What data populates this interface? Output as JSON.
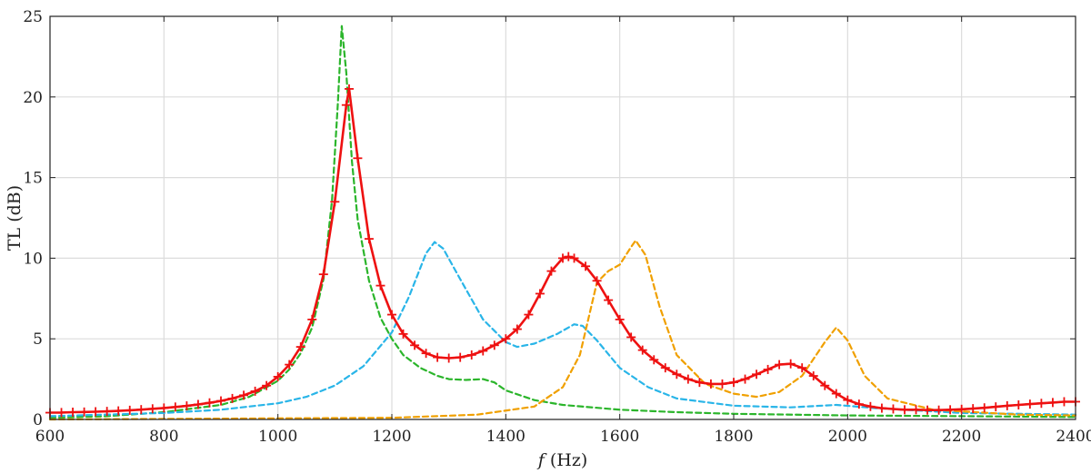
{
  "chart_data": {
    "type": "line",
    "xlabel_var": "f",
    "xlabel_unit": " (Hz)",
    "ylabel": "TL (dB)",
    "xlim": [
      600,
      2400
    ],
    "ylim": [
      0,
      25
    ],
    "grid": true,
    "x_ticks": [
      600,
      800,
      1000,
      1200,
      1400,
      1600,
      1800,
      2000,
      2200,
      2400
    ],
    "y_ticks": [
      0,
      5,
      10,
      15,
      20,
      25
    ],
    "series": [
      {
        "style": "dashed",
        "color": "#2bb52b",
        "points": [
          [
            600,
            0.1
          ],
          [
            700,
            0.2
          ],
          [
            800,
            0.45
          ],
          [
            900,
            0.9
          ],
          [
            950,
            1.4
          ],
          [
            1000,
            2.4
          ],
          [
            1020,
            3.1
          ],
          [
            1040,
            4.1
          ],
          [
            1060,
            5.7
          ],
          [
            1080,
            8.7
          ],
          [
            1095,
            13.6
          ],
          [
            1105,
            19.5
          ],
          [
            1112,
            24.4
          ],
          [
            1120,
            21.5
          ],
          [
            1130,
            16.0
          ],
          [
            1140,
            12.4
          ],
          [
            1160,
            8.6
          ],
          [
            1180,
            6.3
          ],
          [
            1200,
            5.0
          ],
          [
            1220,
            4.0
          ],
          [
            1250,
            3.2
          ],
          [
            1280,
            2.7
          ],
          [
            1300,
            2.5
          ],
          [
            1330,
            2.45
          ],
          [
            1360,
            2.5
          ],
          [
            1380,
            2.3
          ],
          [
            1400,
            1.8
          ],
          [
            1450,
            1.2
          ],
          [
            1500,
            0.9
          ],
          [
            1600,
            0.6
          ],
          [
            1700,
            0.45
          ],
          [
            1800,
            0.35
          ],
          [
            2000,
            0.25
          ],
          [
            2200,
            0.2
          ],
          [
            2400,
            0.15
          ]
        ]
      },
      {
        "style": "dashed",
        "color": "#29b5e8",
        "points": [
          [
            600,
            0.2
          ],
          [
            800,
            0.4
          ],
          [
            900,
            0.6
          ],
          [
            1000,
            1.0
          ],
          [
            1050,
            1.4
          ],
          [
            1100,
            2.1
          ],
          [
            1150,
            3.3
          ],
          [
            1200,
            5.4
          ],
          [
            1230,
            7.6
          ],
          [
            1260,
            10.3
          ],
          [
            1275,
            11.0
          ],
          [
            1290,
            10.6
          ],
          [
            1320,
            8.7
          ],
          [
            1360,
            6.2
          ],
          [
            1400,
            4.8
          ],
          [
            1420,
            4.5
          ],
          [
            1450,
            4.7
          ],
          [
            1490,
            5.3
          ],
          [
            1520,
            5.9
          ],
          [
            1535,
            5.8
          ],
          [
            1560,
            4.9
          ],
          [
            1600,
            3.2
          ],
          [
            1650,
            2.0
          ],
          [
            1700,
            1.3
          ],
          [
            1800,
            0.85
          ],
          [
            1900,
            0.75
          ],
          [
            1980,
            0.9
          ],
          [
            2050,
            0.7
          ],
          [
            2200,
            0.4
          ],
          [
            2400,
            0.3
          ]
        ]
      },
      {
        "style": "dashed",
        "color": "#f0a000",
        "points": [
          [
            600,
            0.0
          ],
          [
            900,
            0.05
          ],
          [
            1200,
            0.1
          ],
          [
            1350,
            0.3
          ],
          [
            1450,
            0.8
          ],
          [
            1500,
            2.0
          ],
          [
            1530,
            4.0
          ],
          [
            1560,
            8.5
          ],
          [
            1580,
            9.2
          ],
          [
            1600,
            9.6
          ],
          [
            1620,
            10.7
          ],
          [
            1628,
            11.1
          ],
          [
            1645,
            10.2
          ],
          [
            1670,
            7.0
          ],
          [
            1700,
            4.0
          ],
          [
            1750,
            2.2
          ],
          [
            1800,
            1.6
          ],
          [
            1840,
            1.4
          ],
          [
            1880,
            1.7
          ],
          [
            1920,
            2.7
          ],
          [
            1960,
            4.8
          ],
          [
            1980,
            5.7
          ],
          [
            2000,
            4.9
          ],
          [
            2030,
            2.7
          ],
          [
            2070,
            1.3
          ],
          [
            2150,
            0.6
          ],
          [
            2300,
            0.3
          ],
          [
            2400,
            0.25
          ]
        ]
      },
      {
        "name": "",
        "style": "solid",
        "markers": "plus",
        "color": "#ee1111",
        "points": [
          [
            600,
            0.42
          ],
          [
            620,
            0.43
          ],
          [
            640,
            0.45
          ],
          [
            660,
            0.46
          ],
          [
            680,
            0.48
          ],
          [
            700,
            0.5
          ],
          [
            720,
            0.53
          ],
          [
            740,
            0.57
          ],
          [
            760,
            0.61
          ],
          [
            780,
            0.66
          ],
          [
            800,
            0.71
          ],
          [
            820,
            0.77
          ],
          [
            840,
            0.84
          ],
          [
            860,
            0.93
          ],
          [
            880,
            1.03
          ],
          [
            900,
            1.15
          ],
          [
            920,
            1.3
          ],
          [
            940,
            1.5
          ],
          [
            960,
            1.75
          ],
          [
            980,
            2.1
          ],
          [
            1000,
            2.65
          ],
          [
            1020,
            3.4
          ],
          [
            1040,
            4.5
          ],
          [
            1060,
            6.2
          ],
          [
            1080,
            9.0
          ],
          [
            1100,
            13.5
          ],
          [
            1120,
            19.5
          ],
          [
            1125,
            20.5
          ],
          [
            1140,
            16.2
          ],
          [
            1160,
            11.2
          ],
          [
            1180,
            8.3
          ],
          [
            1200,
            6.5
          ],
          [
            1220,
            5.3
          ],
          [
            1240,
            4.6
          ],
          [
            1260,
            4.1
          ],
          [
            1280,
            3.85
          ],
          [
            1300,
            3.8
          ],
          [
            1320,
            3.85
          ],
          [
            1340,
            4.0
          ],
          [
            1360,
            4.25
          ],
          [
            1380,
            4.6
          ],
          [
            1400,
            5.0
          ],
          [
            1420,
            5.6
          ],
          [
            1440,
            6.5
          ],
          [
            1460,
            7.8
          ],
          [
            1480,
            9.2
          ],
          [
            1500,
            10.0
          ],
          [
            1510,
            10.1
          ],
          [
            1520,
            10.0
          ],
          [
            1540,
            9.5
          ],
          [
            1560,
            8.6
          ],
          [
            1580,
            7.4
          ],
          [
            1600,
            6.2
          ],
          [
            1620,
            5.1
          ],
          [
            1640,
            4.3
          ],
          [
            1660,
            3.7
          ],
          [
            1680,
            3.2
          ],
          [
            1700,
            2.8
          ],
          [
            1720,
            2.5
          ],
          [
            1740,
            2.3
          ],
          [
            1760,
            2.2
          ],
          [
            1780,
            2.2
          ],
          [
            1800,
            2.3
          ],
          [
            1820,
            2.5
          ],
          [
            1840,
            2.8
          ],
          [
            1860,
            3.1
          ],
          [
            1880,
            3.4
          ],
          [
            1900,
            3.45
          ],
          [
            1920,
            3.2
          ],
          [
            1940,
            2.7
          ],
          [
            1960,
            2.1
          ],
          [
            1980,
            1.6
          ],
          [
            2000,
            1.2
          ],
          [
            2020,
            0.95
          ],
          [
            2040,
            0.8
          ],
          [
            2060,
            0.7
          ],
          [
            2080,
            0.65
          ],
          [
            2100,
            0.6
          ],
          [
            2120,
            0.6
          ],
          [
            2140,
            0.58
          ],
          [
            2160,
            0.58
          ],
          [
            2180,
            0.6
          ],
          [
            2200,
            0.63
          ],
          [
            2220,
            0.67
          ],
          [
            2240,
            0.72
          ],
          [
            2260,
            0.78
          ],
          [
            2280,
            0.85
          ],
          [
            2300,
            0.9
          ],
          [
            2320,
            0.95
          ],
          [
            2340,
            1.0
          ],
          [
            2360,
            1.05
          ],
          [
            2380,
            1.1
          ],
          [
            2400,
            1.1
          ]
        ]
      }
    ]
  }
}
